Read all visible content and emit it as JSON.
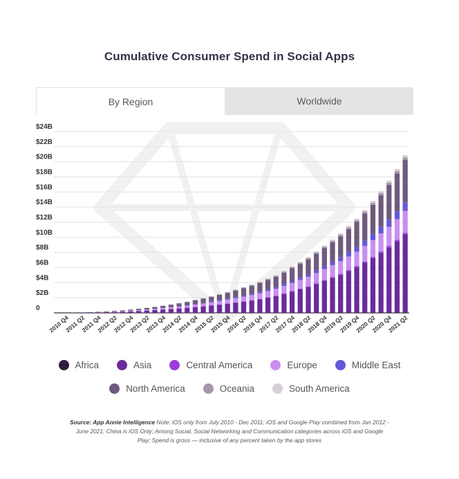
{
  "title": "Cumulative Consumer Spend in Social Apps",
  "tabs": [
    {
      "label": "By Region",
      "active": true
    },
    {
      "label": "Worldwide",
      "active": false
    }
  ],
  "source": {
    "label": "Source: App Annie Intelligence",
    "note": "Note: iOS only from July 2010 - Dec 2011; iOS and Google Play combined from Jan 2012 - June 2021; China is iOS Only; Among Social, Social Networking and Communication categories across iOS and Google Play; Spend is gross — inclusive of any percent taken by the app stores"
  },
  "chart_data": {
    "type": "bar",
    "stacked": true,
    "title": "Cumulative Consumer Spend in Social Apps",
    "xlabel": "",
    "ylabel": "",
    "ylim": [
      0,
      24
    ],
    "y_ticks": [
      "0",
      "$2B",
      "$4B",
      "$6B",
      "$8B",
      "$10B",
      "$12B",
      "$14B",
      "$16B",
      "$18B",
      "$20B",
      "$22B",
      "$24B"
    ],
    "y_tick_values": [
      0,
      2,
      4,
      6,
      8,
      10,
      12,
      14,
      16,
      18,
      20,
      22,
      24
    ],
    "grid": true,
    "legend_position": "bottom",
    "x_tick_labels": [
      "2010 Q4",
      "2011 Q2",
      "2011 Q4",
      "2012 Q2",
      "2012 Q4",
      "2013 Q2",
      "2013 Q4",
      "2014 Q2",
      "2014 Q4",
      "2015 Q2",
      "2015 Q4",
      "2016 Q2",
      "2016 Q4",
      "2017 Q2",
      "2017 Q4",
      "2018 Q2",
      "2018 Q4",
      "2019 Q2",
      "2019 Q4",
      "2020 Q2",
      "2020 Q4",
      "2021 Q2"
    ],
    "categories": [
      "2010 Q3",
      "2010 Q4",
      "2011 Q1",
      "2011 Q2",
      "2011 Q3",
      "2011 Q4",
      "2012 Q1",
      "2012 Q2",
      "2012 Q3",
      "2012 Q4",
      "2013 Q1",
      "2013 Q2",
      "2013 Q3",
      "2013 Q4",
      "2014 Q1",
      "2014 Q2",
      "2014 Q3",
      "2014 Q4",
      "2015 Q1",
      "2015 Q2",
      "2015 Q3",
      "2015 Q4",
      "2016 Q1",
      "2016 Q2",
      "2016 Q3",
      "2016 Q4",
      "2017 Q1",
      "2017 Q2",
      "2017 Q3",
      "2017 Q4",
      "2018 Q1",
      "2018 Q2",
      "2018 Q3",
      "2018 Q4",
      "2019 Q1",
      "2019 Q2",
      "2019 Q3",
      "2019 Q4",
      "2020 Q1",
      "2020 Q2",
      "2020 Q3",
      "2020 Q4",
      "2021 Q1",
      "2021 Q2"
    ],
    "series": [
      {
        "name": "Africa",
        "color": "#2e1e3d",
        "values": [
          0,
          0,
          0,
          0,
          0,
          0,
          0,
          0,
          0,
          0,
          0,
          0,
          0,
          0,
          0,
          0,
          0,
          0,
          0,
          0,
          0,
          0.01,
          0.01,
          0.01,
          0.01,
          0.01,
          0.01,
          0.01,
          0.01,
          0.02,
          0.02,
          0.02,
          0.02,
          0.02,
          0.02,
          0.03,
          0.03,
          0.03,
          0.03,
          0.04,
          0.04,
          0.04,
          0.05,
          0.05
        ]
      },
      {
        "name": "Asia",
        "color": "#6a2a9c",
        "values": [
          0,
          0.01,
          0.02,
          0.03,
          0.05,
          0.07,
          0.09,
          0.12,
          0.16,
          0.2,
          0.25,
          0.3,
          0.36,
          0.43,
          0.5,
          0.58,
          0.67,
          0.76,
          0.86,
          0.97,
          1.08,
          1.2,
          1.33,
          1.47,
          1.62,
          1.78,
          2.0,
          2.2,
          2.5,
          2.8,
          3.1,
          3.4,
          3.8,
          4.2,
          4.6,
          5.0,
          5.5,
          6.0,
          6.6,
          7.2,
          7.9,
          8.6,
          9.4,
          10.3
        ]
      },
      {
        "name": "Central America",
        "color": "#9b3ddb",
        "values": [
          0,
          0,
          0,
          0,
          0,
          0,
          0,
          0,
          0,
          0.01,
          0.01,
          0.01,
          0.01,
          0.02,
          0.02,
          0.02,
          0.02,
          0.03,
          0.03,
          0.03,
          0.04,
          0.04,
          0.05,
          0.05,
          0.05,
          0.06,
          0.06,
          0.07,
          0.07,
          0.08,
          0.09,
          0.1,
          0.1,
          0.11,
          0.12,
          0.13,
          0.14,
          0.15,
          0.16,
          0.17,
          0.19,
          0.2,
          0.22,
          0.24
        ]
      },
      {
        "name": "Europe",
        "color": "#c98ff0",
        "values": [
          0,
          0,
          0.01,
          0.01,
          0.02,
          0.03,
          0.04,
          0.05,
          0.06,
          0.08,
          0.1,
          0.12,
          0.14,
          0.17,
          0.2,
          0.23,
          0.27,
          0.31,
          0.35,
          0.4,
          0.45,
          0.5,
          0.56,
          0.62,
          0.68,
          0.75,
          0.82,
          0.9,
          0.98,
          1.06,
          1.15,
          1.25,
          1.35,
          1.45,
          1.56,
          1.68,
          1.8,
          1.93,
          2.07,
          2.22,
          2.38,
          2.55,
          2.73,
          2.9
        ]
      },
      {
        "name": "Middle East",
        "color": "#6557d8",
        "values": [
          0,
          0,
          0,
          0,
          0,
          0,
          0,
          0.01,
          0.01,
          0.01,
          0.02,
          0.02,
          0.03,
          0.03,
          0.04,
          0.04,
          0.05,
          0.06,
          0.07,
          0.08,
          0.09,
          0.1,
          0.11,
          0.13,
          0.14,
          0.16,
          0.18,
          0.2,
          0.22,
          0.25,
          0.28,
          0.31,
          0.35,
          0.39,
          0.44,
          0.5,
          0.56,
          0.63,
          0.7,
          0.78,
          0.86,
          0.95,
          1.05,
          1.15
        ]
      },
      {
        "name": "North America",
        "color": "#6f5a7e",
        "values": [
          0,
          0,
          0.01,
          0.02,
          0.03,
          0.04,
          0.06,
          0.08,
          0.1,
          0.13,
          0.16,
          0.19,
          0.23,
          0.27,
          0.32,
          0.37,
          0.43,
          0.49,
          0.56,
          0.64,
          0.72,
          0.8,
          0.9,
          1.0,
          1.1,
          1.2,
          1.3,
          1.4,
          1.55,
          1.7,
          1.85,
          2.0,
          2.2,
          2.4,
          2.6,
          2.8,
          3.05,
          3.3,
          3.6,
          3.9,
          4.2,
          4.6,
          5.0,
          5.6
        ]
      },
      {
        "name": "Oceania",
        "color": "#a797ac",
        "values": [
          0,
          0,
          0,
          0,
          0,
          0.01,
          0.01,
          0.01,
          0.01,
          0.02,
          0.02,
          0.02,
          0.03,
          0.03,
          0.03,
          0.04,
          0.04,
          0.05,
          0.05,
          0.06,
          0.06,
          0.07,
          0.08,
          0.08,
          0.09,
          0.1,
          0.11,
          0.12,
          0.13,
          0.14,
          0.15,
          0.16,
          0.17,
          0.18,
          0.19,
          0.2,
          0.22,
          0.23,
          0.25,
          0.26,
          0.28,
          0.3,
          0.32,
          0.34
        ]
      },
      {
        "name": "South America",
        "color": "#d4ced6",
        "values": [
          0,
          0,
          0,
          0,
          0,
          0,
          0.01,
          0.01,
          0.01,
          0.01,
          0.02,
          0.02,
          0.02,
          0.03,
          0.03,
          0.03,
          0.04,
          0.04,
          0.05,
          0.05,
          0.06,
          0.06,
          0.07,
          0.07,
          0.08,
          0.09,
          0.09,
          0.1,
          0.11,
          0.12,
          0.13,
          0.14,
          0.15,
          0.16,
          0.17,
          0.18,
          0.19,
          0.2,
          0.21,
          0.22,
          0.24,
          0.25,
          0.27,
          0.29
        ]
      }
    ]
  },
  "legend_rows": [
    [
      "Africa",
      "Asia",
      "Central America",
      "Europe",
      "Middle East"
    ],
    [
      "North America",
      "Oceania",
      "South America"
    ]
  ]
}
